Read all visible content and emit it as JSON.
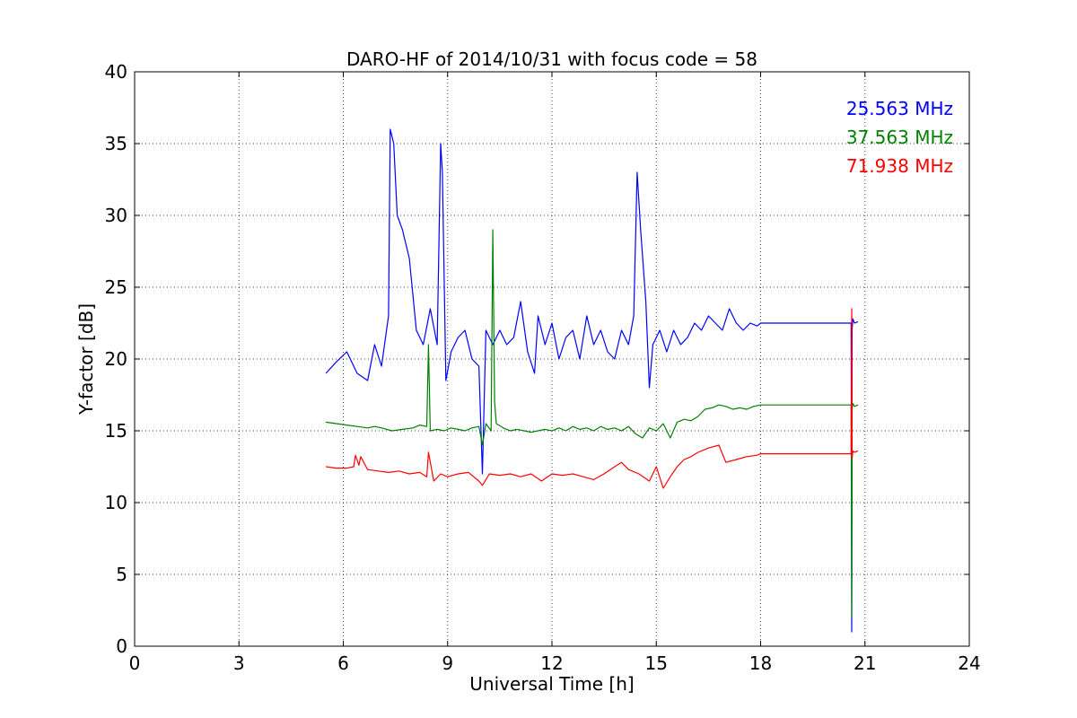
{
  "chart_data": {
    "type": "line",
    "title": "DARO-HF of 2014/10/31 with focus code = 58",
    "xlabel": "Universal Time [h]",
    "ylabel": "Y-factor [dB]",
    "xlim": [
      0,
      24
    ],
    "ylim": [
      0,
      40
    ],
    "xticks": [
      0,
      3,
      6,
      9,
      12,
      15,
      18,
      21,
      24
    ],
    "yticks": [
      0,
      5,
      10,
      15,
      20,
      25,
      30,
      35,
      40
    ],
    "grid": true,
    "legend_position": "top-right",
    "series": [
      {
        "name": "25.563 MHz",
        "color": "#0000ff",
        "x": [
          5.5,
          5.8,
          6.1,
          6.4,
          6.7,
          6.9,
          7.1,
          7.3,
          7.35,
          7.45,
          7.55,
          7.7,
          7.9,
          8.1,
          8.3,
          8.5,
          8.7,
          8.8,
          8.85,
          8.95,
          9.1,
          9.3,
          9.5,
          9.7,
          9.9,
          10.0,
          10.1,
          10.3,
          10.5,
          10.7,
          10.9,
          11.1,
          11.3,
          11.5,
          11.6,
          11.8,
          12.0,
          12.2,
          12.4,
          12.6,
          12.8,
          13.0,
          13.2,
          13.4,
          13.6,
          13.8,
          14.0,
          14.2,
          14.35,
          14.45,
          14.55,
          14.7,
          14.8,
          14.9,
          15.1,
          15.3,
          15.5,
          15.7,
          15.9,
          16.1,
          16.3,
          16.5,
          16.7,
          16.9,
          17.1,
          17.3,
          17.5,
          17.7,
          17.9,
          18.0,
          20.6,
          20.62,
          20.63,
          20.65,
          20.7,
          20.8
        ],
        "y": [
          19.0,
          19.8,
          20.5,
          19.0,
          18.5,
          21.0,
          19.5,
          23.0,
          36.0,
          35.0,
          30.0,
          29.0,
          27.0,
          22.0,
          21.0,
          23.5,
          21.0,
          35.0,
          33.0,
          18.5,
          20.5,
          21.5,
          22.0,
          20.0,
          19.5,
          12.0,
          22.0,
          21.0,
          22.0,
          21.0,
          21.5,
          24.0,
          20.5,
          19.0,
          23.0,
          21.0,
          22.5,
          20.0,
          21.5,
          22.0,
          20.0,
          23.0,
          21.0,
          22.0,
          20.5,
          20.0,
          22.0,
          21.0,
          23.0,
          33.0,
          29.0,
          24.0,
          18.0,
          21.0,
          22.0,
          20.5,
          22.0,
          21.0,
          21.5,
          22.5,
          22.0,
          23.0,
          22.5,
          22.0,
          23.5,
          22.5,
          22.0,
          22.5,
          22.3,
          22.5,
          22.5,
          1.0,
          22.0,
          22.8,
          22.5,
          22.6
        ]
      },
      {
        "name": "37.563 MHz",
        "color": "#008000",
        "x": [
          5.5,
          5.8,
          6.1,
          6.4,
          6.7,
          6.9,
          7.1,
          7.4,
          7.7,
          8.0,
          8.2,
          8.4,
          8.45,
          8.5,
          8.7,
          8.9,
          9.1,
          9.3,
          9.5,
          9.7,
          9.9,
          10.0,
          10.1,
          10.25,
          10.3,
          10.35,
          10.4,
          10.6,
          10.8,
          11.0,
          11.2,
          11.4,
          11.6,
          11.8,
          12.0,
          12.2,
          12.4,
          12.6,
          12.8,
          13.0,
          13.2,
          13.4,
          13.6,
          13.8,
          14.0,
          14.2,
          14.4,
          14.6,
          14.8,
          15.0,
          15.2,
          15.4,
          15.6,
          15.8,
          16.0,
          16.2,
          16.4,
          16.6,
          16.8,
          17.0,
          17.2,
          17.4,
          17.6,
          17.8,
          18.0,
          20.6,
          20.62,
          20.63,
          20.65,
          20.7,
          20.8
        ],
        "y": [
          15.6,
          15.5,
          15.4,
          15.3,
          15.2,
          15.3,
          15.2,
          15.0,
          15.1,
          15.2,
          15.4,
          15.3,
          21.0,
          15.0,
          15.1,
          15.0,
          15.2,
          15.1,
          15.0,
          15.2,
          15.3,
          14.0,
          15.5,
          15.0,
          29.0,
          17.0,
          15.5,
          15.2,
          15.0,
          15.1,
          15.0,
          14.9,
          15.0,
          15.1,
          15.0,
          15.2,
          15.0,
          15.3,
          15.1,
          15.2,
          15.0,
          15.3,
          15.1,
          15.2,
          15.0,
          15.3,
          14.8,
          14.5,
          15.2,
          15.0,
          15.5,
          14.5,
          15.6,
          15.8,
          15.7,
          16.0,
          16.5,
          16.6,
          16.8,
          16.7,
          16.5,
          16.6,
          16.5,
          16.7,
          16.8,
          16.8,
          2.0,
          16.5,
          16.9,
          16.7,
          16.8
        ]
      },
      {
        "name": "71.938 MHz",
        "color": "#ff0000",
        "x": [
          5.5,
          5.8,
          6.1,
          6.3,
          6.35,
          6.45,
          6.5,
          6.7,
          7.0,
          7.3,
          7.6,
          7.9,
          8.2,
          8.4,
          8.45,
          8.6,
          8.8,
          9.0,
          9.3,
          9.6,
          9.9,
          10.0,
          10.2,
          10.5,
          10.8,
          11.1,
          11.4,
          11.7,
          12.0,
          12.3,
          12.6,
          12.9,
          13.2,
          13.5,
          13.8,
          14.0,
          14.2,
          14.5,
          14.8,
          15.0,
          15.2,
          15.4,
          15.6,
          15.8,
          16.0,
          16.2,
          16.5,
          16.8,
          17.0,
          17.3,
          17.6,
          17.9,
          18.0,
          20.6,
          20.62,
          20.63,
          20.65,
          20.7,
          20.8
        ],
        "y": [
          12.5,
          12.4,
          12.4,
          12.5,
          13.3,
          12.6,
          13.2,
          12.3,
          12.2,
          12.1,
          12.2,
          12.0,
          12.1,
          11.8,
          13.5,
          11.5,
          12.0,
          11.8,
          12.0,
          12.1,
          11.5,
          11.2,
          12.0,
          11.9,
          12.0,
          11.8,
          12.0,
          11.5,
          12.0,
          11.9,
          12.0,
          11.8,
          11.6,
          12.0,
          12.5,
          12.8,
          12.3,
          12.0,
          11.5,
          12.5,
          11.0,
          11.8,
          12.5,
          13.0,
          13.2,
          13.5,
          13.8,
          14.0,
          12.8,
          13.0,
          13.2,
          13.3,
          13.4,
          13.4,
          23.5,
          13.0,
          13.6,
          13.5,
          13.6
        ]
      }
    ]
  }
}
